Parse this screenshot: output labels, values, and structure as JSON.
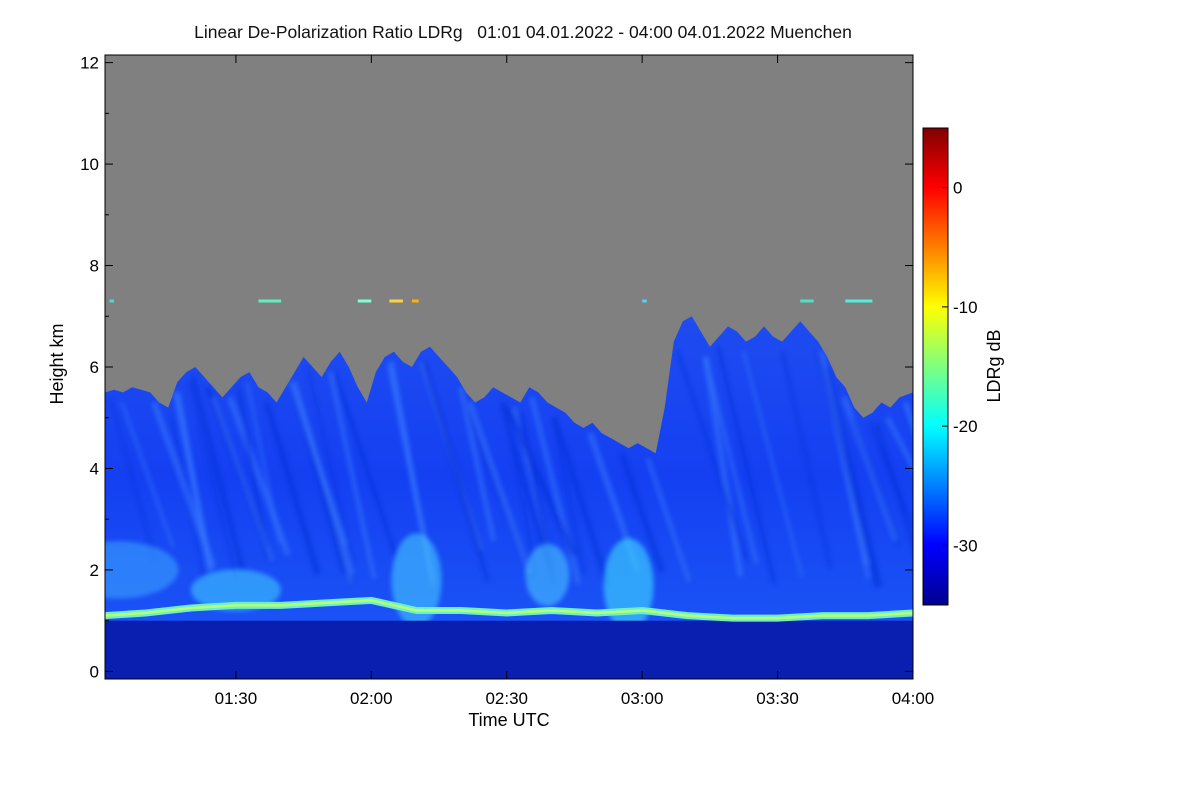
{
  "chart_data": {
    "type": "heatmap",
    "title": "Linear De-Polarization Ratio LDRg   01:01 04.01.2022 - 04:00 04.01.2022 Muenchen",
    "xlabel": "Time UTC",
    "ylabel": "Height km",
    "colorbar_label": "LDRg dB",
    "xlim_minutes": [
      61,
      240
    ],
    "ylim_km": [
      -0.15,
      12.15
    ],
    "x_ticks": [
      {
        "value": 90,
        "label": "01:30"
      },
      {
        "value": 120,
        "label": "02:00"
      },
      {
        "value": 150,
        "label": "02:30"
      },
      {
        "value": 180,
        "label": "03:00"
      },
      {
        "value": 210,
        "label": "03:30"
      },
      {
        "value": 240,
        "label": "04:00"
      }
    ],
    "y_ticks": [
      {
        "value": 0,
        "label": "0"
      },
      {
        "value": 2,
        "label": "2"
      },
      {
        "value": 4,
        "label": "4"
      },
      {
        "value": 6,
        "label": "6"
      },
      {
        "value": 8,
        "label": "8"
      },
      {
        "value": 10,
        "label": "10"
      },
      {
        "value": 12,
        "label": "12"
      }
    ],
    "colorbar_range": [
      -35,
      5
    ],
    "colorbar_ticks": [
      {
        "value": 0,
        "label": "0"
      },
      {
        "value": -10,
        "label": "-10"
      },
      {
        "value": -20,
        "label": "-20"
      },
      {
        "value": -30,
        "label": "-30"
      }
    ],
    "colormap": "jet",
    "no_data_color": "#808080",
    "cloud_top_km": [
      [
        61,
        5.5
      ],
      [
        63,
        5.55
      ],
      [
        65,
        5.5
      ],
      [
        67,
        5.6
      ],
      [
        69,
        5.55
      ],
      [
        71,
        5.5
      ],
      [
        73,
        5.3
      ],
      [
        75,
        5.2
      ],
      [
        77,
        5.7
      ],
      [
        79,
        5.9
      ],
      [
        81,
        6.0
      ],
      [
        83,
        5.8
      ],
      [
        85,
        5.6
      ],
      [
        87,
        5.4
      ],
      [
        89,
        5.6
      ],
      [
        91,
        5.8
      ],
      [
        93,
        5.9
      ],
      [
        95,
        5.6
      ],
      [
        97,
        5.5
      ],
      [
        99,
        5.3
      ],
      [
        101,
        5.6
      ],
      [
        103,
        5.9
      ],
      [
        105,
        6.2
      ],
      [
        107,
        6.0
      ],
      [
        109,
        5.8
      ],
      [
        111,
        6.1
      ],
      [
        113,
        6.3
      ],
      [
        115,
        6.0
      ],
      [
        117,
        5.6
      ],
      [
        119,
        5.3
      ],
      [
        121,
        5.9
      ],
      [
        123,
        6.2
      ],
      [
        125,
        6.3
      ],
      [
        127,
        6.1
      ],
      [
        129,
        6.0
      ],
      [
        131,
        6.3
      ],
      [
        133,
        6.4
      ],
      [
        135,
        6.2
      ],
      [
        137,
        6.0
      ],
      [
        139,
        5.8
      ],
      [
        141,
        5.5
      ],
      [
        143,
        5.3
      ],
      [
        145,
        5.4
      ],
      [
        147,
        5.6
      ],
      [
        149,
        5.5
      ],
      [
        151,
        5.4
      ],
      [
        153,
        5.3
      ],
      [
        155,
        5.6
      ],
      [
        157,
        5.5
      ],
      [
        159,
        5.3
      ],
      [
        161,
        5.2
      ],
      [
        163,
        5.1
      ],
      [
        165,
        4.9
      ],
      [
        167,
        4.8
      ],
      [
        169,
        4.9
      ],
      [
        171,
        4.7
      ],
      [
        173,
        4.6
      ],
      [
        175,
        4.5
      ],
      [
        177,
        4.4
      ],
      [
        179,
        4.5
      ],
      [
        181,
        4.4
      ],
      [
        183,
        4.3
      ],
      [
        185,
        5.2
      ],
      [
        187,
        6.5
      ],
      [
        189,
        6.9
      ],
      [
        191,
        7.0
      ],
      [
        193,
        6.7
      ],
      [
        195,
        6.4
      ],
      [
        197,
        6.6
      ],
      [
        199,
        6.8
      ],
      [
        201,
        6.7
      ],
      [
        203,
        6.5
      ],
      [
        205,
        6.6
      ],
      [
        207,
        6.8
      ],
      [
        209,
        6.6
      ],
      [
        211,
        6.5
      ],
      [
        213,
        6.7
      ],
      [
        215,
        6.9
      ],
      [
        217,
        6.7
      ],
      [
        219,
        6.5
      ],
      [
        221,
        6.2
      ],
      [
        223,
        5.8
      ],
      [
        225,
        5.6
      ],
      [
        227,
        5.2
      ],
      [
        229,
        5.0
      ],
      [
        231,
        5.1
      ],
      [
        233,
        5.3
      ],
      [
        235,
        5.2
      ],
      [
        237,
        5.4
      ],
      [
        240,
        5.5
      ]
    ],
    "liquid_layer_km": [
      [
        61,
        1.1
      ],
      [
        70,
        1.15
      ],
      [
        80,
        1.25
      ],
      [
        90,
        1.3
      ],
      [
        100,
        1.3
      ],
      [
        110,
        1.35
      ],
      [
        120,
        1.4
      ],
      [
        125,
        1.3
      ],
      [
        130,
        1.2
      ],
      [
        140,
        1.2
      ],
      [
        150,
        1.15
      ],
      [
        160,
        1.2
      ],
      [
        170,
        1.15
      ],
      [
        180,
        1.2
      ],
      [
        190,
        1.1
      ],
      [
        200,
        1.05
      ],
      [
        210,
        1.05
      ],
      [
        220,
        1.1
      ],
      [
        230,
        1.1
      ],
      [
        240,
        1.15
      ]
    ],
    "sparse_layer_km": 7.3
  }
}
